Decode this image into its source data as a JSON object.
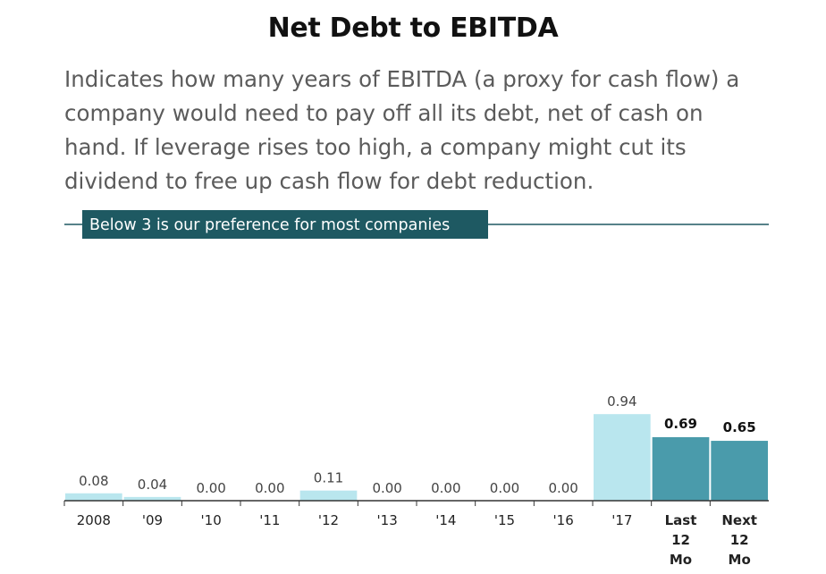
{
  "title": "Net Debt to EBITDA",
  "description": "Indicates how many years of EBITDA (a proxy for cash flow) a company would need to pay off all its debt, net of cash on hand. If leverage rises too high, a company might cut its dividend to free up cash flow for debt reduction.",
  "chart_data": {
    "type": "bar",
    "categories": [
      "2008",
      "'09",
      "'10",
      "'11",
      "'12",
      "'13",
      "'14",
      "'15",
      "'16",
      "'17",
      "Last 12 Mo",
      "Next 12 Mo"
    ],
    "category_lines": [
      [
        "2008"
      ],
      [
        "'09"
      ],
      [
        "'10"
      ],
      [
        "'11"
      ],
      [
        "'12"
      ],
      [
        "'13"
      ],
      [
        "'14"
      ],
      [
        "'15"
      ],
      [
        "'16"
      ],
      [
        "'17"
      ],
      [
        "Last",
        "12",
        "Mo"
      ],
      [
        "Next",
        "12",
        "Mo"
      ]
    ],
    "values": [
      0.08,
      0.04,
      0.0,
      0.0,
      0.11,
      0.0,
      0.0,
      0.0,
      0.0,
      0.94,
      0.69,
      0.65
    ],
    "value_labels": [
      "0.08",
      "0.04",
      "0.00",
      "0.00",
      "0.11",
      "0.00",
      "0.00",
      "0.00",
      "0.00",
      "0.94",
      "0.69",
      "0.65"
    ],
    "highlighted": [
      false,
      false,
      false,
      false,
      false,
      false,
      false,
      false,
      false,
      false,
      true,
      true
    ],
    "reference_line": {
      "value": 3,
      "label": "Below 3 is our preference for most companies"
    },
    "ylim": [
      0,
      3.2
    ],
    "grid": false,
    "colors": {
      "bar": "#b9e6ee",
      "bar_highlight": "#4a9bab",
      "reference_line": "#1e5962",
      "reference_label_bg": "#1e5962",
      "axis": "#333333",
      "value_label": "#444444",
      "value_label_bold": "#111111"
    }
  }
}
